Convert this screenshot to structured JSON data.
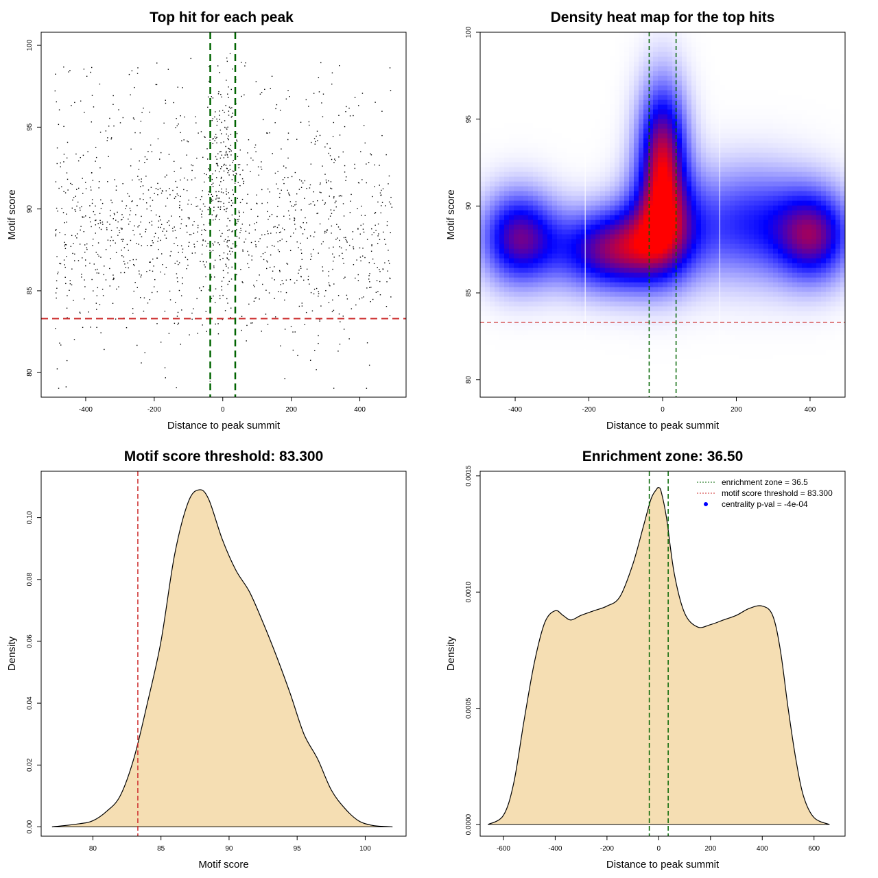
{
  "colors": {
    "threshold_line": "#cc2b2b",
    "zone_line": "#006400",
    "density_fill": "#f5deb3",
    "heat_low": "#ffffff",
    "heat_mid": "#0000ff",
    "heat_high": "#ff0000",
    "point": "#000000"
  },
  "chart_data": [
    {
      "id": "scatter",
      "type": "scatter",
      "title": "Top hit for each peak",
      "xlabel": "Distance to peak summit",
      "ylabel": "Motif score",
      "xlim": [
        -530,
        535
      ],
      "ylim": [
        78.5,
        100.8
      ],
      "xticks": [
        -400,
        -200,
        0,
        200,
        400
      ],
      "yticks": [
        80,
        85,
        90,
        95,
        100
      ],
      "threshold_y": 83.3,
      "zone_x": [
        -36.5,
        36.5
      ],
      "points_description": "about 1500 top hits between -500 and 500, scores concentrated between 84 and 93, densest near summit",
      "n_points": 1500
    },
    {
      "id": "heatmap",
      "type": "heatmap",
      "title": "Density heat map for the top hits",
      "xlabel": "Distance to peak summit",
      "ylabel": "Motif score",
      "xlim": [
        -495,
        495
      ],
      "ylim": [
        79,
        100
      ],
      "xticks": [
        -400,
        -200,
        0,
        200,
        400
      ],
      "yticks": [
        80,
        85,
        90,
        95,
        100
      ],
      "threshold_y": 83.3,
      "zone_x": [
        -36.5,
        36.5
      ],
      "white_lines_x": [
        -210,
        155
      ],
      "density_components": [
        {
          "x": 0,
          "y": 93,
          "sx": 45,
          "sy": 2.8,
          "w": 1.0
        },
        {
          "x": -130,
          "y": 87.5,
          "sx": 110,
          "sy": 1.6,
          "w": 0.95
        },
        {
          "x": -390,
          "y": 88.2,
          "sx": 70,
          "sy": 1.8,
          "w": 0.85
        },
        {
          "x": 410,
          "y": 88.3,
          "sx": 70,
          "sy": 1.8,
          "w": 0.8
        },
        {
          "x": 240,
          "y": 89,
          "sx": 120,
          "sy": 2.2,
          "w": 0.55
        },
        {
          "x": 0,
          "y": 89,
          "sx": 70,
          "sy": 2.2,
          "w": 0.7
        }
      ]
    },
    {
      "id": "score_density",
      "type": "area",
      "title": "Motif score threshold: 83.300",
      "xlabel": "Motif score",
      "ylabel": "Density",
      "xlim": [
        76.2,
        103
      ],
      "ylim": [
        -0.003,
        0.115
      ],
      "xticks": [
        80,
        85,
        90,
        95,
        100
      ],
      "yticks": [
        0.0,
        0.02,
        0.04,
        0.06,
        0.08,
        0.1
      ],
      "ytick_labels": [
        "0.00",
        "0.02",
        "0.04",
        "0.06",
        "0.08",
        "0.10"
      ],
      "threshold_x": 83.3,
      "x": [
        77.0,
        79.0,
        80.0,
        81.0,
        82.0,
        83.0,
        84.0,
        85.0,
        86.0,
        87.0,
        87.8,
        88.5,
        89.5,
        90.5,
        91.5,
        92.5,
        93.5,
        94.5,
        95.5,
        96.5,
        97.5,
        98.5,
        99.5,
        100.5,
        101.5,
        102.0
      ],
      "y": [
        0.0,
        0.001,
        0.002,
        0.005,
        0.01,
        0.022,
        0.04,
        0.06,
        0.088,
        0.105,
        0.109,
        0.106,
        0.093,
        0.083,
        0.076,
        0.066,
        0.055,
        0.043,
        0.03,
        0.022,
        0.012,
        0.006,
        0.002,
        0.0005,
        0.0001,
        0.0
      ]
    },
    {
      "id": "distance_density",
      "type": "area",
      "title": "Enrichment zone: 36.50",
      "xlabel": "Distance to peak summit",
      "ylabel": "Density",
      "xlim": [
        -690,
        720
      ],
      "ylim": [
        -5e-05,
        0.00152
      ],
      "xticks": [
        -600,
        -400,
        -200,
        0,
        200,
        400,
        600
      ],
      "yticks": [
        0.0,
        0.0005,
        0.001,
        0.0015
      ],
      "ytick_labels": [
        "0.0000",
        "0.0005",
        "0.0010",
        "0.0015"
      ],
      "zone_x": [
        -36.5,
        36.5
      ],
      "x": [
        -660,
        -600,
        -560,
        -520,
        -480,
        -440,
        -400,
        -370,
        -340,
        -300,
        -250,
        -200,
        -150,
        -100,
        -60,
        -30,
        -10,
        0,
        10,
        30,
        60,
        100,
        150,
        200,
        250,
        300,
        350,
        400,
        440,
        470,
        500,
        530,
        560,
        600,
        660
      ],
      "y": [
        0.0,
        4e-05,
        0.00018,
        0.00045,
        0.0007,
        0.00087,
        0.00092,
        0.0009,
        0.00088,
        0.0009,
        0.00092,
        0.00094,
        0.00098,
        0.00112,
        0.00128,
        0.0014,
        0.00144,
        0.00145,
        0.00143,
        0.00132,
        0.00108,
        0.00091,
        0.00085,
        0.00086,
        0.00088,
        0.0009,
        0.00093,
        0.00094,
        0.0009,
        0.00075,
        0.0005,
        0.00028,
        0.00012,
        3e-05,
        0.0
      ],
      "legend": [
        {
          "label": "enrichment zone = 36.5",
          "style": "dotted",
          "color": "#006400"
        },
        {
          "label": "motif score threshold = 83.300",
          "style": "dotted",
          "color": "#cc2b2b"
        },
        {
          "label": "centrality p-val = -4e-04",
          "style": "dot",
          "color": "#0000ff"
        }
      ]
    }
  ]
}
